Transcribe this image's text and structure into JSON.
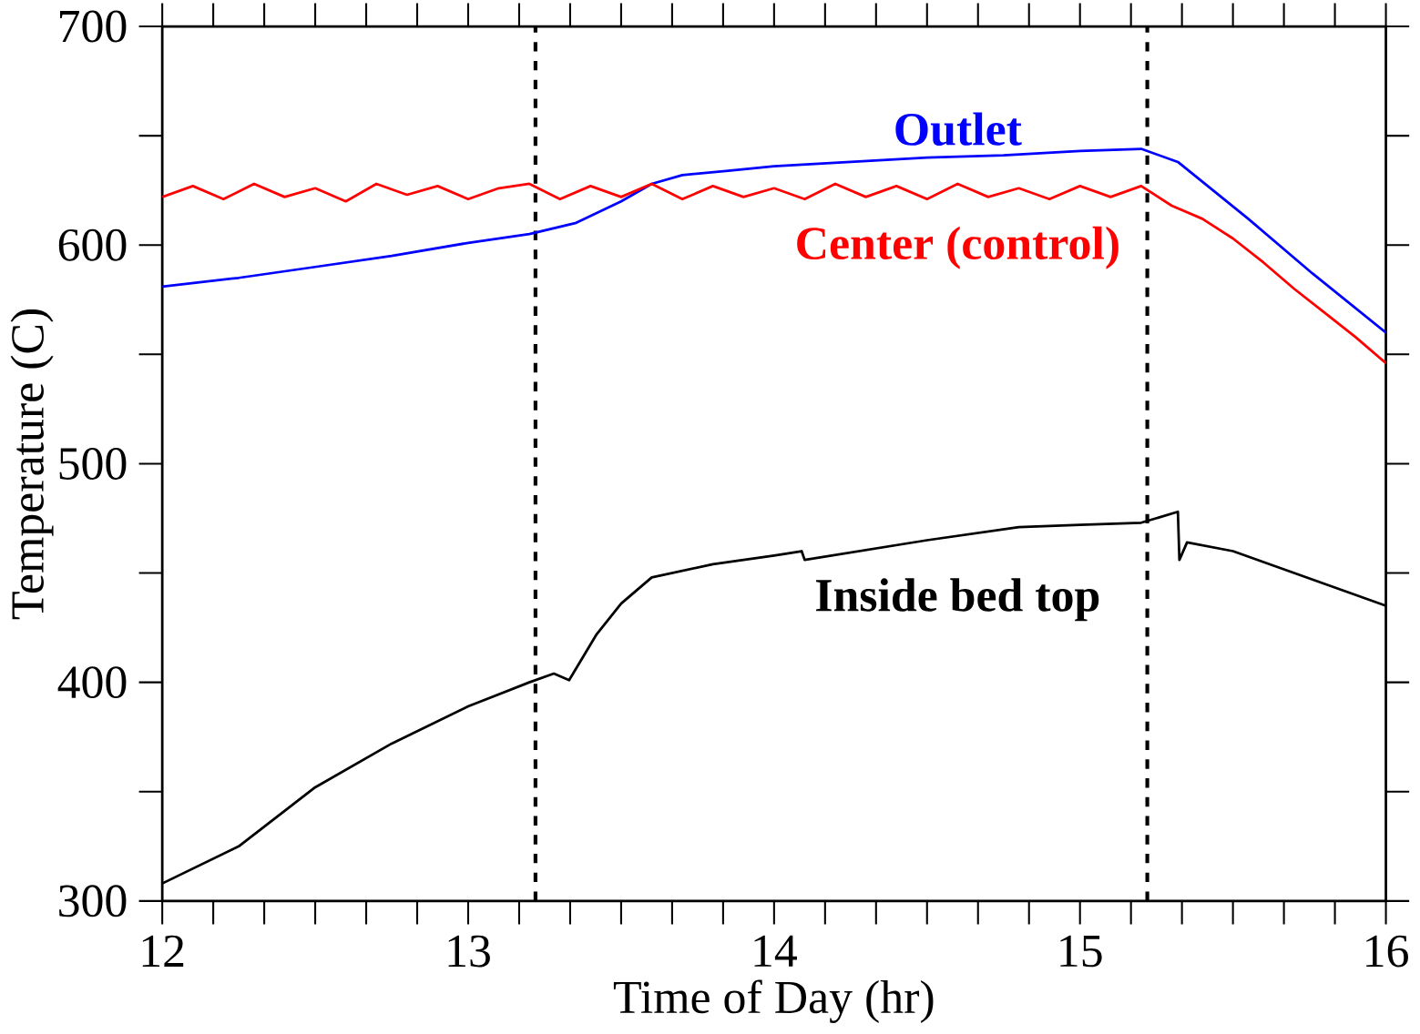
{
  "chart_data": {
    "type": "line",
    "xlabel": "Time of Day (hr)",
    "ylabel": "Temperature (C)",
    "xlim": [
      12,
      16
    ],
    "ylim": [
      300,
      700
    ],
    "xticks": [
      12,
      13,
      14,
      15,
      16
    ],
    "yticks": [
      300,
      400,
      500,
      600,
      700
    ],
    "marker": "none",
    "line_style": "solid",
    "ref_lines": [
      {
        "axis": "x",
        "value": 13.22,
        "color": "#000000",
        "line_style": "dashed"
      },
      {
        "axis": "x",
        "value": 15.22,
        "color": "#000000",
        "line_style": "dashed"
      }
    ],
    "series": [
      {
        "name": "Outlet",
        "color": "#0000ff",
        "x": [
          12,
          12.25,
          12.5,
          12.75,
          13,
          13.2,
          13.35,
          13.5,
          13.6,
          13.7,
          13.85,
          14,
          14.25,
          14.5,
          14.75,
          15,
          15.2,
          15.32,
          15.55,
          15.76,
          16
        ],
        "values": [
          581,
          585,
          590,
          595,
          601,
          605,
          610,
          620,
          628,
          632,
          634,
          636,
          638,
          640,
          641,
          643,
          644,
          638,
          612,
          587,
          560
        ]
      },
      {
        "name": "Center (control)",
        "color": "#ff0000",
        "x": [
          12,
          12.1,
          12.2,
          12.3,
          12.4,
          12.5,
          12.6,
          12.7,
          12.8,
          12.9,
          13,
          13.1,
          13.2,
          13.3,
          13.4,
          13.5,
          13.6,
          13.7,
          13.8,
          13.9,
          14,
          14.1,
          14.2,
          14.3,
          14.4,
          14.5,
          14.6,
          14.7,
          14.8,
          14.9,
          15,
          15.1,
          15.2,
          15.3,
          15.4,
          15.5,
          15.6,
          15.7,
          15.8,
          15.9,
          16
        ],
        "values": [
          622,
          627,
          621,
          628,
          622,
          626,
          620,
          628,
          623,
          627,
          621,
          626,
          628,
          621,
          627,
          622,
          628,
          621,
          627,
          622,
          626,
          621,
          628,
          622,
          627,
          621,
          628,
          622,
          626,
          621,
          627,
          622,
          627,
          618,
          612,
          603,
          592,
          580,
          569,
          558,
          546
        ]
      },
      {
        "name": "Inside bed top",
        "color": "#000000",
        "x": [
          12,
          12.25,
          12.5,
          12.75,
          13,
          13.2,
          13.28,
          13.33,
          13.42,
          13.5,
          13.6,
          13.8,
          14,
          14.09,
          14.1,
          14.5,
          14.8,
          15,
          15.2,
          15.32,
          15.325,
          15.35,
          15.5,
          15.7,
          15.9,
          16
        ],
        "values": [
          308,
          325,
          352,
          372,
          389,
          400,
          404,
          401,
          422,
          436,
          448,
          454,
          458,
          460,
          456,
          465,
          471,
          472,
          473,
          478,
          456,
          464,
          460,
          450,
          440,
          435
        ]
      }
    ]
  }
}
